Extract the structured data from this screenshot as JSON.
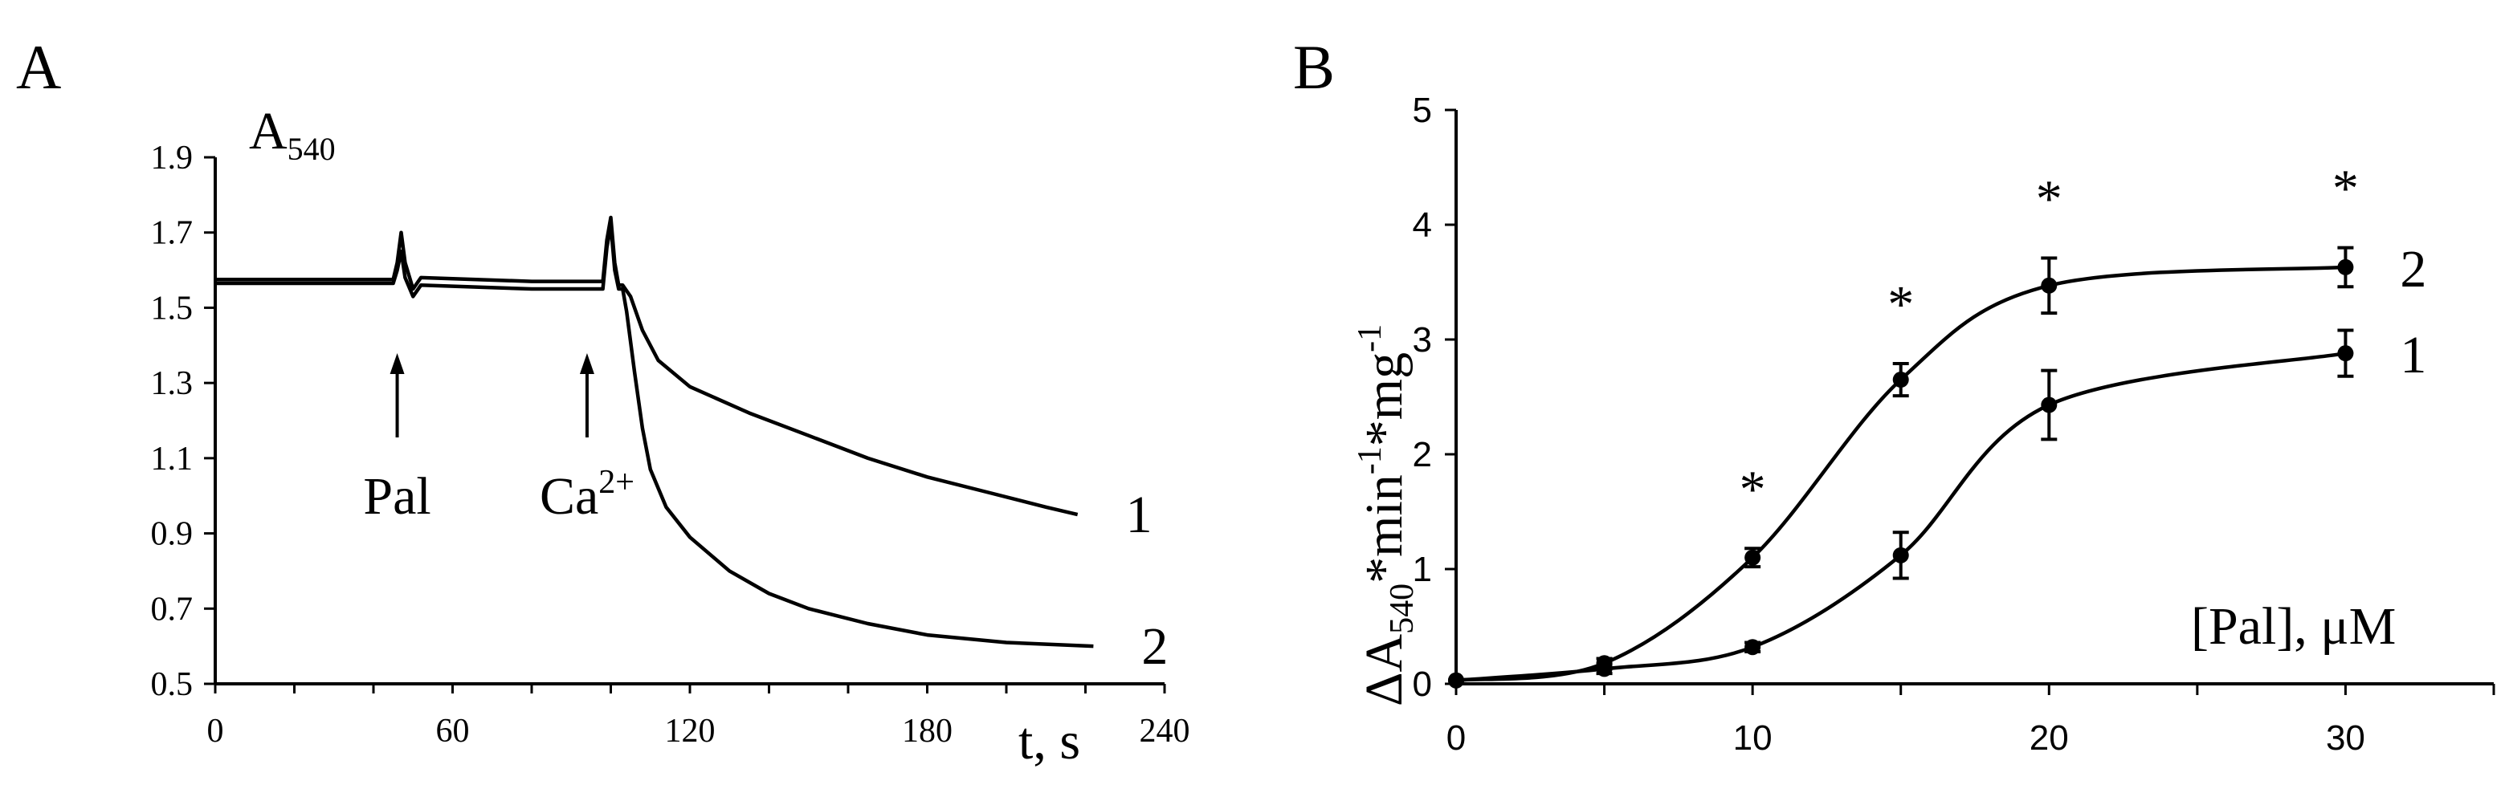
{
  "chart_data": [
    {
      "type": "line",
      "panel_label": "A",
      "ylabel": "A",
      "ylabel_sub": "540",
      "xlabel": "t, s",
      "xlim": [
        0,
        240
      ],
      "ylim": [
        0.5,
        1.9
      ],
      "x_ticks": [
        "0",
        "60",
        "120",
        "180",
        "240"
      ],
      "y_ticks": [
        "0.5",
        "0.7",
        "0.9",
        "1.1",
        "1.3",
        "1.5",
        "1.7",
        "1.9"
      ],
      "annotations": [
        {
          "text": "Pal",
          "x": 46
        },
        {
          "text": "Ca",
          "sup": "2+",
          "x": 94
        }
      ],
      "series": [
        {
          "name": "1",
          "x": [
            0,
            20,
            45,
            46,
            47,
            48,
            50,
            52,
            80,
            98,
            99,
            100,
            101,
            102,
            103,
            105,
            108,
            112,
            120,
            135,
            150,
            165,
            180,
            195,
            210,
            218
          ],
          "y": [
            1.575,
            1.575,
            1.575,
            1.62,
            1.7,
            1.62,
            1.55,
            1.58,
            1.57,
            1.57,
            1.68,
            1.74,
            1.62,
            1.56,
            1.56,
            1.53,
            1.44,
            1.36,
            1.29,
            1.22,
            1.16,
            1.1,
            1.05,
            1.01,
            0.97,
            0.95
          ]
        },
        {
          "name": "2",
          "x": [
            0,
            20,
            45,
            46,
            47,
            48,
            50,
            52,
            80,
            98,
            99,
            100,
            101,
            102,
            103,
            104,
            106,
            108,
            110,
            114,
            120,
            130,
            140,
            150,
            165,
            180,
            200,
            222
          ],
          "y": [
            1.565,
            1.565,
            1.565,
            1.6,
            1.65,
            1.58,
            1.53,
            1.56,
            1.55,
            1.55,
            1.66,
            1.72,
            1.6,
            1.55,
            1.55,
            1.49,
            1.33,
            1.18,
            1.07,
            0.97,
            0.89,
            0.8,
            0.74,
            0.7,
            0.66,
            0.63,
            0.61,
            0.6
          ]
        }
      ]
    },
    {
      "type": "line",
      "panel_label": "B",
      "ylabel": "ΔA540*min-1*mg-1",
      "ylabel_parts": [
        "ΔA",
        "540",
        "*min",
        "-1",
        "*mg",
        "-1"
      ],
      "xlabel": "[Pal], μM",
      "xlim": [
        0,
        35
      ],
      "ylim": [
        0,
        5
      ],
      "x_ticks": [
        "0",
        "10",
        "20",
        "30"
      ],
      "y_ticks": [
        "0",
        "1",
        "2",
        "3",
        "4",
        "5"
      ],
      "significance_marker": "*",
      "significance_x": [
        10,
        15,
        20,
        30
      ],
      "series": [
        {
          "name": "1",
          "x": [
            0,
            5,
            10,
            15,
            20,
            30
          ],
          "values": [
            0.03,
            0.13,
            0.32,
            1.12,
            2.43,
            2.88
          ],
          "errors": [
            0.0,
            0.04,
            0.04,
            0.2,
            0.3,
            0.2
          ]
        },
        {
          "name": "2",
          "x": [
            0,
            5,
            10,
            15,
            20,
            30
          ],
          "values": [
            0.03,
            0.18,
            1.1,
            2.65,
            3.47,
            3.63
          ],
          "errors": [
            0.0,
            0.04,
            0.08,
            0.14,
            0.24,
            0.17
          ]
        }
      ]
    }
  ]
}
